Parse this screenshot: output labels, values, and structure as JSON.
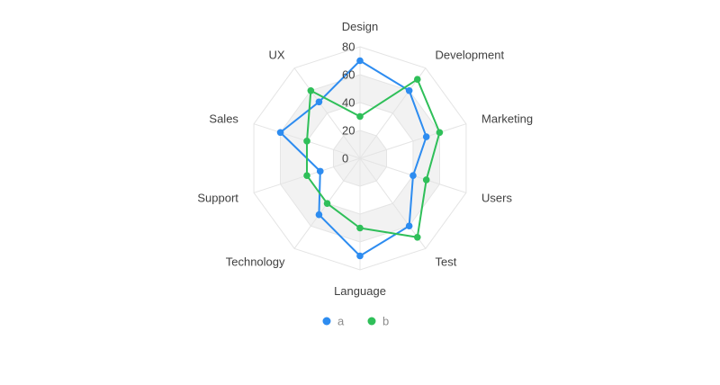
{
  "chart_data": {
    "type": "radar",
    "title": "",
    "categories": [
      "Design",
      "Development",
      "Marketing",
      "Users",
      "Test",
      "Language",
      "Technology",
      "Support",
      "Sales",
      "UX"
    ],
    "series": [
      {
        "name": "a",
        "color": "#2d8cf0",
        "values": [
          70,
          60,
          50,
          40,
          60,
          70,
          50,
          30,
          60,
          50
        ]
      },
      {
        "name": "b",
        "color": "#2fbf59",
        "values": [
          30,
          70,
          60,
          50,
          70,
          50,
          40,
          40,
          40,
          60
        ]
      }
    ],
    "rlim": [
      0,
      80
    ],
    "ticks": [
      0,
      20,
      40,
      60,
      80
    ],
    "grid": true,
    "legend": "bottom"
  }
}
